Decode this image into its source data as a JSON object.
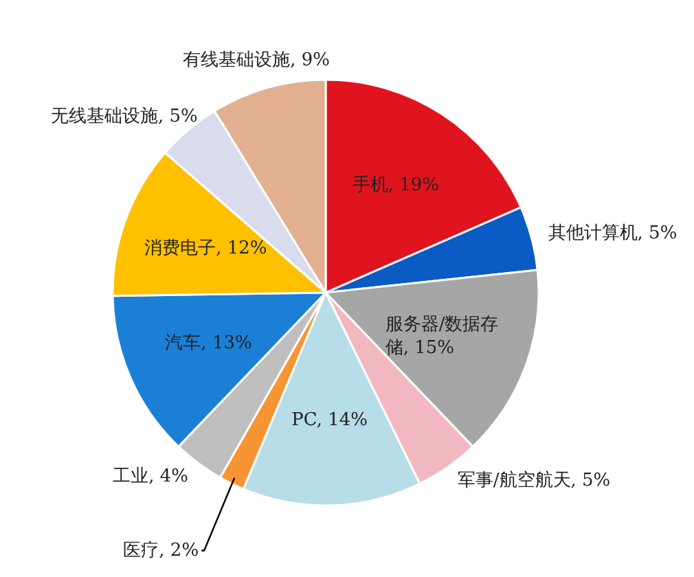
{
  "chart_data": {
    "type": "pie",
    "categories": [
      "手机",
      "其他计算机",
      "服务器/数据存储",
      "军事/航空航天",
      "PC",
      "医疗",
      "工业",
      "汽车",
      "消费电子",
      "无线基础设施",
      "有线基础设施"
    ],
    "values": [
      19,
      5,
      15,
      5,
      14,
      2,
      4,
      13,
      12,
      5,
      9
    ],
    "value_labels": [
      "19%",
      "5%",
      "15%",
      "5%",
      "14%",
      "2%",
      "4%",
      "13%",
      "12%",
      "5%",
      "9%"
    ],
    "colors": [
      "#e0141e",
      "#0a5bc4",
      "#a6a6a6",
      "#f2b8c0",
      "#b7dde8",
      "#f79433",
      "#bfbfbf",
      "#1c7fd6",
      "#ffc000",
      "#d9dced",
      "#e2b091"
    ]
  }
}
